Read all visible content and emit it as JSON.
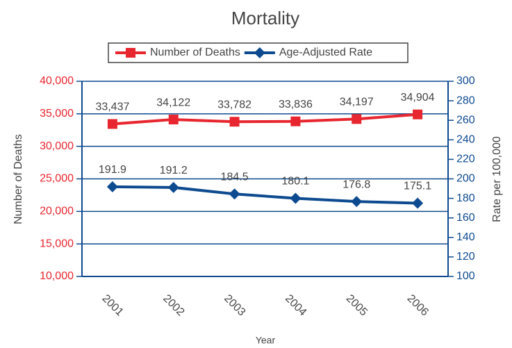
{
  "chart_data": {
    "type": "line",
    "title": "Mortality",
    "xlabel": "Year",
    "ylabel": "Number of Deaths",
    "y2label": "Rate per 100,000",
    "categories": [
      "2001",
      "2002",
      "2003",
      "2004",
      "2005",
      "2006"
    ],
    "series": [
      {
        "name": "Number of Deaths",
        "color": "#e8262f",
        "axis": "y",
        "values": [
          33437,
          34122,
          33782,
          33836,
          34197,
          34904
        ],
        "value_labels": [
          "33,437",
          "34,122",
          "33,782",
          "33,836",
          "34,197",
          "34,904"
        ]
      },
      {
        "name": "Age-Adjusted Rate",
        "color": "#0d4a8f",
        "axis": "y2",
        "values": [
          191.9,
          191.2,
          184.5,
          180.1,
          176.8,
          175.1
        ]
      }
    ],
    "ylim": [
      10000,
      40000
    ],
    "yticks": [
      {
        "value": 10000,
        "label": "10,000"
      },
      {
        "value": 15000,
        "label": "15,000"
      },
      {
        "value": 20000,
        "label": "20,000"
      },
      {
        "value": 25000,
        "label": "25,000"
      },
      {
        "value": 30000,
        "label": "30,000"
      },
      {
        "value": 35000,
        "label": "35,000"
      },
      {
        "value": 40000,
        "label": "40,000"
      }
    ],
    "y2lim": [
      100,
      300
    ],
    "y2ticks": [
      100,
      120,
      140,
      160,
      180,
      200,
      220,
      240,
      260,
      280,
      300
    ],
    "grid": true,
    "legend": "top"
  }
}
